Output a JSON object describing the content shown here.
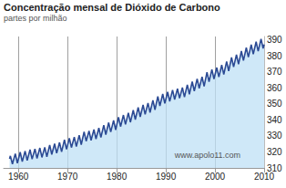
{
  "chart_data": {
    "type": "line",
    "title": "Concentração mensal de Dióxido de Carbono",
    "subtitle": "partes por milhão",
    "annotations": [
      "www.apolo11.com"
    ],
    "color": "#2b4a94",
    "grid": true,
    "x": [
      1958.2,
      1958.37,
      1958.79,
      1959.37,
      1959.79,
      1960.37,
      1960.79,
      1961.37,
      1961.79,
      1962.37,
      1962.79,
      1963.37,
      1963.79,
      1964.37,
      1964.79,
      1965.37,
      1965.79,
      1966.37,
      1966.79,
      1967.37,
      1967.79,
      1968.37,
      1968.79,
      1969.37,
      1969.79,
      1970.37,
      1970.79,
      1971.37,
      1971.79,
      1972.37,
      1972.79,
      1973.37,
      1973.79,
      1974.37,
      1974.79,
      1975.37,
      1975.79,
      1976.37,
      1976.79,
      1977.37,
      1977.79,
      1978.37,
      1978.79,
      1979.37,
      1979.79,
      1980.37,
      1980.79,
      1981.37,
      1981.79,
      1982.37,
      1982.79,
      1983.37,
      1983.79,
      1984.37,
      1984.79,
      1985.37,
      1985.79,
      1986.37,
      1986.79,
      1987.37,
      1987.79,
      1988.37,
      1988.79,
      1989.37,
      1989.79,
      1990.37,
      1990.79,
      1991.37,
      1991.79,
      1992.37,
      1992.79,
      1993.37,
      1993.79,
      1994.37,
      1994.79,
      1995.37,
      1995.79,
      1996.37,
      1996.79,
      1997.37,
      1997.79,
      1998.37,
      1998.79,
      1999.37,
      1999.79,
      2000.37,
      2000.79,
      2001.37,
      2001.79,
      2002.37,
      2002.79,
      2003.37,
      2003.79,
      2004.37,
      2004.79,
      2005.37,
      2005.79,
      2006.37,
      2006.79,
      2007.37,
      2007.79,
      2008.37,
      2008.79,
      2009.37,
      2009.79,
      2010.0
    ],
    "values": [
      315.7,
      317.5,
      312.4,
      318.9,
      313.0,
      319.8,
      313.9,
      320.5,
      314.6,
      321.4,
      315.5,
      321.9,
      316.0,
      322.5,
      316.6,
      322.9,
      317.0,
      324.3,
      318.4,
      325.1,
      319.2,
      325.9,
      320.0,
      327.5,
      321.6,
      328.6,
      322.7,
      329.2,
      323.3,
      330.4,
      324.5,
      332.6,
      326.7,
      333.1,
      327.2,
      334.0,
      328.1,
      334.9,
      329.0,
      336.7,
      330.8,
      338.3,
      332.4,
      339.7,
      333.8,
      341.7,
      335.8,
      343.0,
      337.1,
      344.4,
      338.5,
      346.1,
      340.2,
      347.8,
      341.9,
      349.3,
      343.4,
      350.5,
      344.6,
      352.2,
      346.3,
      354.6,
      348.7,
      356.1,
      350.2,
      357.4,
      351.5,
      358.6,
      352.7,
      359.4,
      353.5,
      360.1,
      354.2,
      361.9,
      356.0,
      363.9,
      358.0,
      365.6,
      359.7,
      366.8,
      360.9,
      369.7,
      363.8,
      371.4,
      365.5,
      372.6,
      366.7,
      374.2,
      368.3,
      376.4,
      370.5,
      378.9,
      373.0,
      380.6,
      374.7,
      382.9,
      377.0,
      385.0,
      379.1,
      386.9,
      381.0,
      388.7,
      382.8,
      390.5,
      384.6,
      387.0
    ],
    "xlim": [
      1957,
      2010
    ],
    "xticks": [
      1960,
      1970,
      1980,
      1990,
      2000,
      2010
    ],
    "ylim": [
      310,
      392
    ],
    "yticks": [
      310,
      320,
      330,
      340,
      350,
      360,
      370,
      380,
      390
    ]
  }
}
